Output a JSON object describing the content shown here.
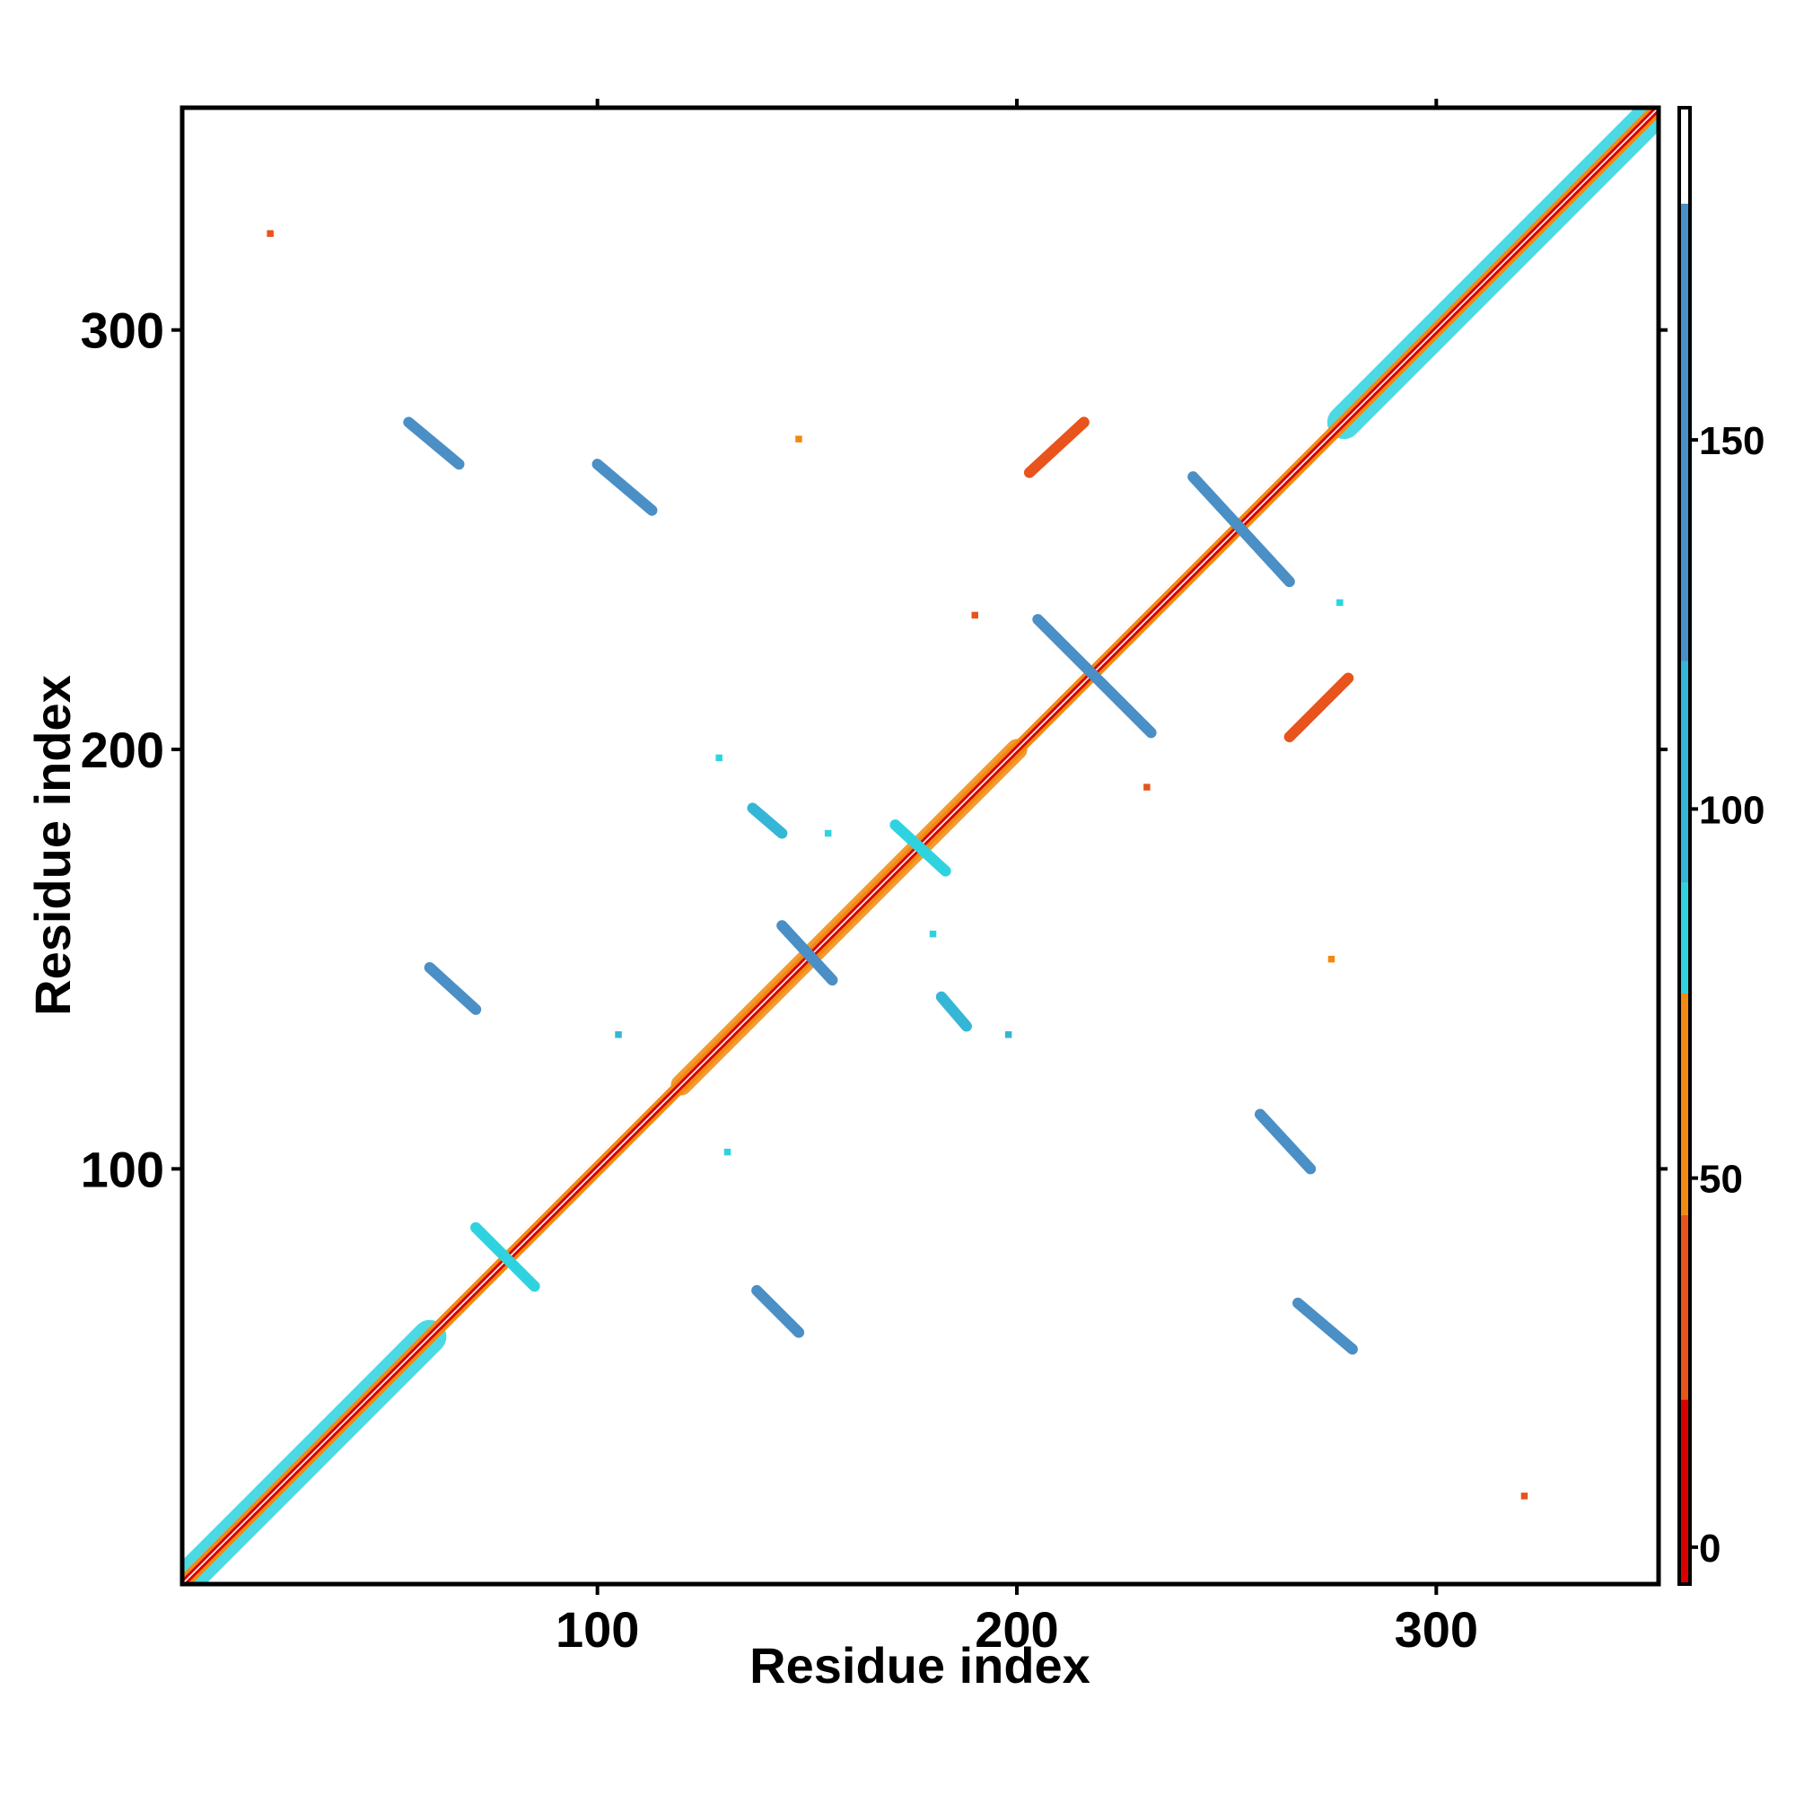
{
  "chart_data": {
    "type": "heatmap",
    "xlabel": "Residue index",
    "ylabel": "Residue index",
    "xlim": [
      1,
      353
    ],
    "ylim": [
      1,
      353
    ],
    "x_ticks": [
      100,
      200,
      300
    ],
    "y_ticks": [
      100,
      200,
      300
    ],
    "grid": false,
    "colorbar": {
      "ticks": [
        0,
        50,
        100,
        150
      ],
      "range": [
        -5,
        195
      ],
      "bands": [
        {
          "from": -5,
          "to": 20,
          "color": "#d90000"
        },
        {
          "from": 20,
          "to": 45,
          "color": "#e8541c"
        },
        {
          "from": 45,
          "to": 75,
          "color": "#f28a10"
        },
        {
          "from": 75,
          "to": 90,
          "color": "#2fd3e0"
        },
        {
          "from": 90,
          "to": 120,
          "color": "#35b6d6"
        },
        {
          "from": 120,
          "to": 182,
          "color": "#4a8fc6"
        },
        {
          "from": 182,
          "to": 195,
          "color": "#ffffff"
        }
      ]
    },
    "features": [
      {
        "kind": "diagonal",
        "from": 1,
        "to": 353,
        "color": "#d90000"
      },
      {
        "kind": "diagonal_band",
        "from": 1,
        "to": 60,
        "width": 4,
        "color": "#2fd3e0"
      },
      {
        "kind": "diagonal_band",
        "from": 278,
        "to": 353,
        "width": 4,
        "color": "#2fd3e0"
      },
      {
        "kind": "diagonal_band",
        "from": 120,
        "to": 200,
        "width": 2.5,
        "color": "#f28a10"
      },
      {
        "kind": "segment",
        "x": [
          55,
          67
        ],
        "y": [
          278,
          268
        ],
        "color": "#4a8fc6"
      },
      {
        "kind": "segment",
        "x": [
          100,
          113
        ],
        "y": [
          268,
          257
        ],
        "color": "#4a8fc6"
      },
      {
        "kind": "segment",
        "x": [
          203,
          216
        ],
        "y": [
          266,
          278
        ],
        "color": "#e8541c"
      },
      {
        "kind": "segment",
        "x": [
          242,
          265
        ],
        "y": [
          265,
          240
        ],
        "color": "#4a8fc6"
      },
      {
        "kind": "segment",
        "x": [
          205,
          232
        ],
        "y": [
          231,
          204
        ],
        "color": "#4a8fc6"
      },
      {
        "kind": "segment",
        "x": [
          265,
          279
        ],
        "y": [
          203,
          217
        ],
        "color": "#e8541c"
      },
      {
        "kind": "segment",
        "x": [
          137,
          144
        ],
        "y": [
          186,
          180
        ],
        "color": "#35b6d6"
      },
      {
        "kind": "segment",
        "x": [
          171,
          183
        ],
        "y": [
          182,
          171
        ],
        "color": "#2fd3e0"
      },
      {
        "kind": "segment",
        "x": [
          144,
          156
        ],
        "y": [
          158,
          145
        ],
        "color": "#4a8fc6"
      },
      {
        "kind": "segment",
        "x": [
          60,
          71
        ],
        "y": [
          148,
          138
        ],
        "color": "#4a8fc6"
      },
      {
        "kind": "segment",
        "x": [
          182,
          188
        ],
        "y": [
          141,
          134
        ],
        "color": "#35b6d6"
      },
      {
        "kind": "segment",
        "x": [
          258,
          270
        ],
        "y": [
          113,
          100
        ],
        "color": "#4a8fc6"
      },
      {
        "kind": "segment",
        "x": [
          71,
          85
        ],
        "y": [
          86,
          72
        ],
        "color": "#2fd3e0"
      },
      {
        "kind": "segment",
        "x": [
          138,
          148
        ],
        "y": [
          71,
          61
        ],
        "color": "#4a8fc6"
      },
      {
        "kind": "segment",
        "x": [
          267,
          280
        ],
        "y": [
          68,
          57
        ],
        "color": "#4a8fc6"
      },
      {
        "kind": "dot",
        "x": 22,
        "y": 323,
        "color": "#e8541c"
      },
      {
        "kind": "dot",
        "x": 148,
        "y": 274,
        "color": "#f28a10"
      },
      {
        "kind": "dot",
        "x": 190,
        "y": 232,
        "color": "#e8541c"
      },
      {
        "kind": "dot",
        "x": 277,
        "y": 235,
        "color": "#2fd3e0"
      },
      {
        "kind": "dot",
        "x": 129,
        "y": 198,
        "color": "#2fd3e0"
      },
      {
        "kind": "dot",
        "x": 231,
        "y": 191,
        "color": "#e8541c"
      },
      {
        "kind": "dot",
        "x": 155,
        "y": 180,
        "color": "#2fd3e0"
      },
      {
        "kind": "dot",
        "x": 180,
        "y": 156,
        "color": "#2fd3e0"
      },
      {
        "kind": "dot",
        "x": 275,
        "y": 150,
        "color": "#f28a10"
      },
      {
        "kind": "dot",
        "x": 105,
        "y": 132,
        "color": "#35b6d6"
      },
      {
        "kind": "dot",
        "x": 198,
        "y": 132,
        "color": "#35b6d6"
      },
      {
        "kind": "dot",
        "x": 131,
        "y": 104,
        "color": "#2fd3e0"
      },
      {
        "kind": "dot",
        "x": 321,
        "y": 22,
        "color": "#e8541c"
      }
    ]
  }
}
